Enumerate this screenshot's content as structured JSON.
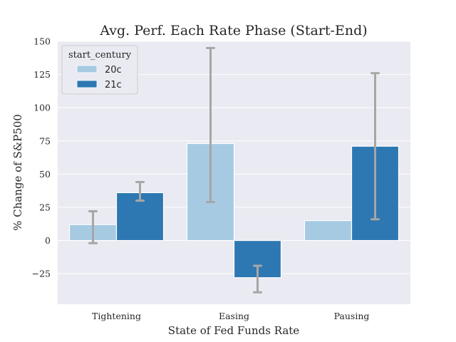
{
  "chart_data": {
    "type": "bar",
    "title": "Avg. Perf. Each Rate Phase (Start-End)",
    "xlabel": "State of Fed Funds Rate",
    "ylabel": "% Change of S&P500",
    "categories": [
      "Tightening",
      "Easing",
      "Pausing"
    ],
    "ylim": [
      -48,
      150
    ],
    "yticks": [
      -25,
      0,
      25,
      50,
      75,
      100,
      125,
      150
    ],
    "ytick_labels": [
      "−25",
      "0",
      "25",
      "50",
      "75",
      "100",
      "125",
      "150"
    ],
    "grid": true,
    "legend": {
      "title": "start_century",
      "placement": "top-left"
    },
    "series": [
      {
        "name": "20c",
        "color": "#a6cae2",
        "values": [
          12,
          73,
          15
        ],
        "error_low": [
          -2,
          29,
          null
        ],
        "error_high": [
          22,
          145,
          null
        ]
      },
      {
        "name": "21c",
        "color": "#2d78b2",
        "values": [
          36,
          -28,
          71
        ],
        "error_low": [
          30,
          -39,
          16
        ],
        "error_high": [
          44,
          -19,
          126
        ]
      }
    ],
    "error_bar_color": "#a6a6a6"
  }
}
